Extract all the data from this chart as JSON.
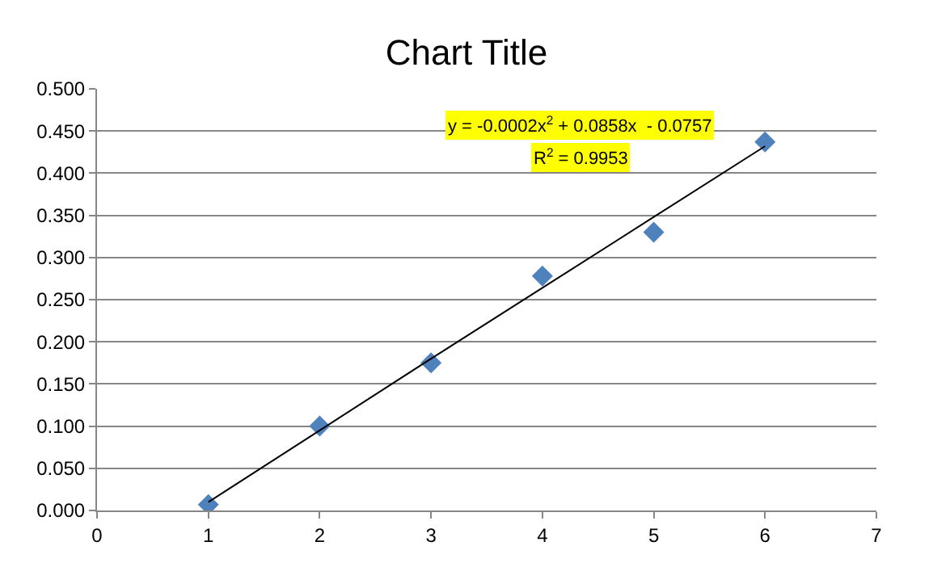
{
  "chart_data": {
    "type": "scatter",
    "title": "Chart Title",
    "x": [
      1,
      2,
      3,
      4,
      5,
      6
    ],
    "series": [
      {
        "color": "#4f81bd",
        "marker": "diamond",
        "values": [
          0.007,
          0.1,
          0.175,
          0.278,
          0.33,
          0.437
        ]
      },
      {
        "type": "line",
        "color": "#000000",
        "marker": "none",
        "x": [
          1,
          2,
          3,
          4,
          5,
          6
        ],
        "values": [
          0.01,
          0.095,
          0.18,
          0.264,
          0.348,
          0.432
        ]
      }
    ],
    "xlim": [
      0,
      7
    ],
    "xticks": [
      0,
      1,
      2,
      3,
      4,
      5,
      6,
      7
    ],
    "ylim": [
      0,
      0.5
    ],
    "yticks": [
      {
        "value": 0,
        "label": "0.000"
      },
      {
        "value": 0.05,
        "label": "0.050"
      },
      {
        "value": 0.1,
        "label": "0.100"
      },
      {
        "value": 0.15,
        "label": "0.150"
      },
      {
        "value": 0.2,
        "label": "0.200"
      },
      {
        "value": 0.25,
        "label": "0.250"
      },
      {
        "value": 0.3,
        "label": "0.300"
      },
      {
        "value": 0.35,
        "label": "0.350"
      },
      {
        "value": 0.4,
        "label": "0.400"
      },
      {
        "value": 0.45,
        "label": "0.450"
      },
      {
        "value": 0.5,
        "label": "0.500"
      }
    ],
    "grid": "y",
    "annotations": [
      "y = -0.0002x$^{2}$ + 0.0858x  - 0.0757",
      "R$^{2}$ = 0.9953"
    ]
  }
}
